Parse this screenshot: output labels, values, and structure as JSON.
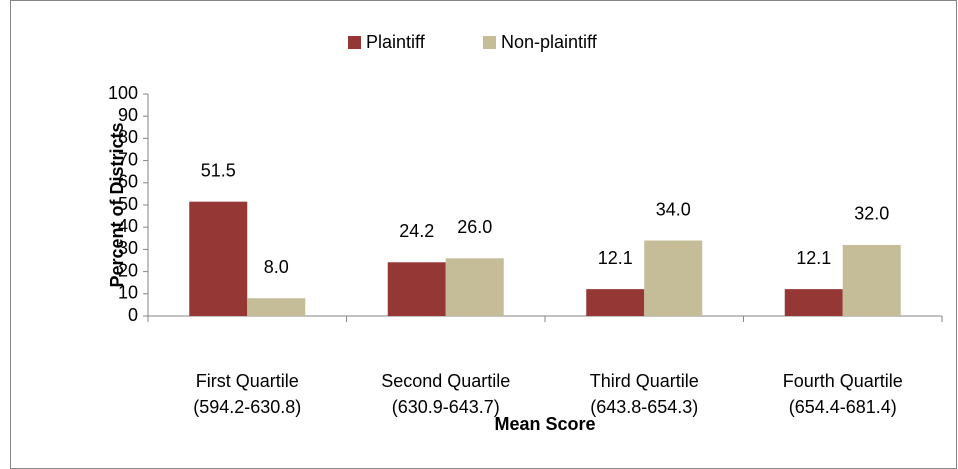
{
  "chart_data": {
    "type": "bar",
    "categories": [
      [
        "First Quartile",
        "(594.2-630.8)"
      ],
      [
        "Second Quartile",
        "(630.9-643.7)"
      ],
      [
        "Third Quartile",
        "(643.8-654.3)"
      ],
      [
        "Fourth Quartile",
        "(654.4-681.4)"
      ]
    ],
    "series": [
      {
        "name": "Plaintiff",
        "color": "#953735",
        "values": [
          51.5,
          24.2,
          12.1,
          12.1
        ],
        "value_labels": [
          "51.5",
          "24.2",
          "12.1",
          "12.1"
        ]
      },
      {
        "name": "Non-plaintiff",
        "color": "#c4bd97",
        "values": [
          8,
          26,
          34,
          32
        ],
        "value_labels": [
          "8.0",
          "26.0",
          "34.0",
          "32.0"
        ]
      }
    ],
    "ylabel": "Percent of Districts",
    "xlabel": "Mean Score",
    "ylim": [
      0,
      100
    ],
    "yticks": [
      0,
      10,
      20,
      30,
      40,
      50,
      60,
      70,
      80,
      90,
      100
    ],
    "legend": "top",
    "grid": false
  }
}
